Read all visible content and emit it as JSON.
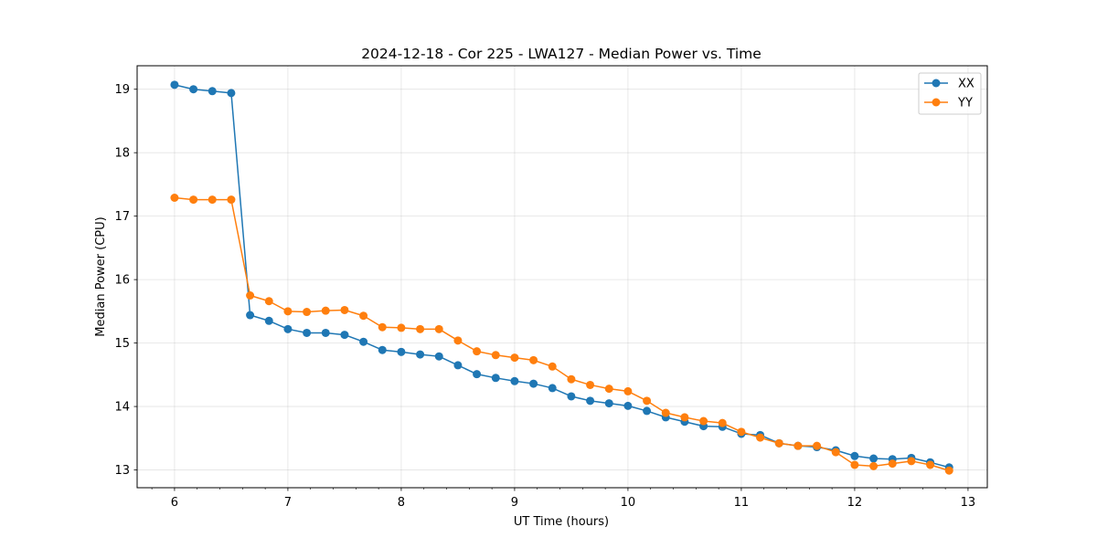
{
  "chart_data": {
    "type": "line",
    "title": "2024-12-18 - Cor 225 - LWA127 - Median Power vs. Time",
    "xlabel": "UT Time (hours)",
    "ylabel": "Median Power (CPU)",
    "xlim": [
      5.67,
      13.17
    ],
    "ylim": [
      12.72,
      19.37
    ],
    "xticks": [
      6,
      7,
      8,
      9,
      10,
      11,
      12,
      13
    ],
    "yticks": [
      13,
      14,
      15,
      16,
      17,
      18,
      19
    ],
    "x_minor_step": 0.2,
    "grid": true,
    "legend_position": "top-right",
    "x": [
      6.0,
      6.1667,
      6.3333,
      6.5,
      6.6667,
      6.8333,
      7.0,
      7.1667,
      7.3333,
      7.5,
      7.6667,
      7.8333,
      8.0,
      8.1667,
      8.3333,
      8.5,
      8.6667,
      8.8333,
      9.0,
      9.1667,
      9.3333,
      9.5,
      9.6667,
      9.8333,
      10.0,
      10.1667,
      10.3333,
      10.5,
      10.6667,
      10.8333,
      11.0,
      11.1667,
      11.3333,
      11.5,
      11.6667,
      11.8333,
      12.0,
      12.1667,
      12.3333,
      12.5,
      12.6667,
      12.8333
    ],
    "series": [
      {
        "name": "XX",
        "color": "#1f77b4",
        "values": [
          19.07,
          19.0,
          18.97,
          18.94,
          15.44,
          15.35,
          15.22,
          15.16,
          15.16,
          15.13,
          15.02,
          14.89,
          14.86,
          14.82,
          14.79,
          14.65,
          14.51,
          14.45,
          14.4,
          14.36,
          14.29,
          14.16,
          14.09,
          14.05,
          14.01,
          13.93,
          13.83,
          13.76,
          13.69,
          13.68,
          13.57,
          13.55,
          13.42,
          13.38,
          13.36,
          13.31,
          13.22,
          13.18,
          13.17,
          13.19,
          13.12,
          13.04
        ]
      },
      {
        "name": "YY",
        "color": "#ff7f0e",
        "values": [
          17.29,
          17.26,
          17.26,
          17.26,
          15.75,
          15.66,
          15.5,
          15.49,
          15.51,
          15.52,
          15.43,
          15.25,
          15.24,
          15.22,
          15.22,
          15.04,
          14.87,
          14.81,
          14.77,
          14.73,
          14.63,
          14.43,
          14.34,
          14.28,
          14.24,
          14.09,
          13.9,
          13.83,
          13.77,
          13.74,
          13.6,
          13.51,
          13.42,
          13.38,
          13.38,
          13.28,
          13.08,
          13.06,
          13.1,
          13.14,
          13.08,
          12.99
        ]
      }
    ]
  }
}
